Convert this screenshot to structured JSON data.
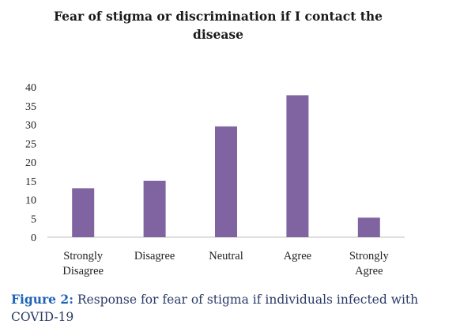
{
  "chart_data": {
    "type": "bar",
    "title_lines": [
      "Fear of stigma or discrimination if I contact the",
      "disease"
    ],
    "categories": [
      [
        "Strongly",
        "Disagree"
      ],
      [
        "Disagree"
      ],
      [
        "Neutral"
      ],
      [
        "Agree"
      ],
      [
        "Strongly",
        "Agree"
      ]
    ],
    "values": [
      13,
      15,
      29.5,
      37.8,
      5.2
    ],
    "ylim": [
      0,
      40
    ],
    "yticks": [
      "0",
      "5",
      "10",
      "15",
      "20",
      "25",
      "30",
      "35",
      "40"
    ],
    "bar_color": "#8064a2",
    "grid": false,
    "legend": "none"
  },
  "caption": {
    "label": "Figure 2:",
    "text": " Response for fear of stigma if individuals infected with COVID-19"
  }
}
